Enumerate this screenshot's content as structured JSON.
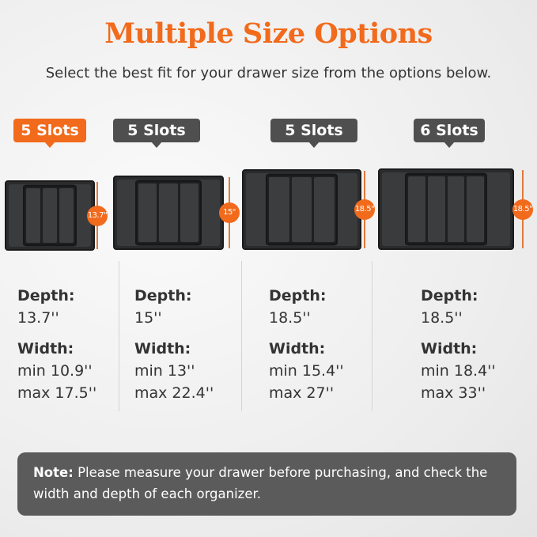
{
  "title": "Multiple Size Options",
  "subtitle": "Select the best fit for your drawer size from the options below.",
  "colors": {
    "accent": "#f26a1b",
    "badge_gray": "#4f4f4f",
    "tray": "#2a2b2d"
  },
  "options": [
    {
      "badge": "5 Slots",
      "highlighted": true,
      "dimension": "13.7\"",
      "depth_label": "Depth:",
      "depth": "13.7''",
      "width_label": "Width:",
      "min": "min 10.9''",
      "max": "max 17.5''"
    },
    {
      "badge": "5 Slots",
      "highlighted": false,
      "dimension": "15\"",
      "depth_label": "Depth:",
      "depth": "15''",
      "width_label": "Width:",
      "min": "min 13''",
      "max": "max 22.4''"
    },
    {
      "badge": "5 Slots",
      "highlighted": false,
      "dimension": "18.5\"",
      "depth_label": "Depth:",
      "depth": "18.5''",
      "width_label": "Width:",
      "min": "min 15.4''",
      "max": "max 27''"
    },
    {
      "badge": "6 Slots",
      "highlighted": false,
      "dimension": "18.5\"",
      "depth_label": "Depth:",
      "depth": "18.5''",
      "width_label": "Width:",
      "min": "min 18.4''",
      "max": "max 33''"
    }
  ],
  "note": {
    "label": "Note:",
    "text": " Please measure your drawer before purchasing, and check the width and depth of each organizer."
  }
}
